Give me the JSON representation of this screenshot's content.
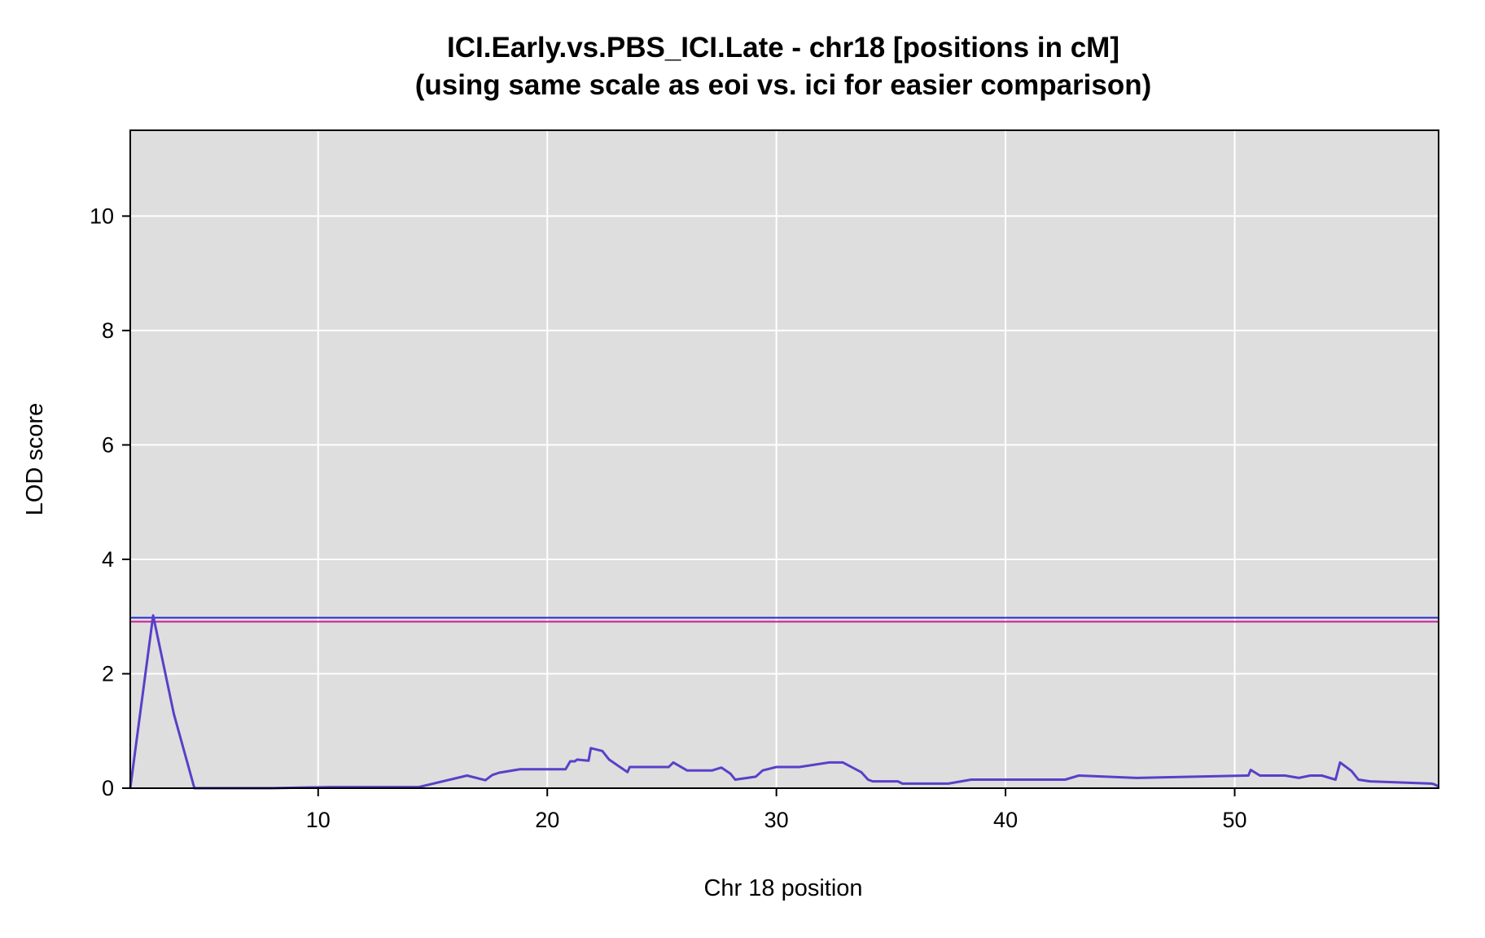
{
  "chart_data": {
    "type": "line",
    "title": "ICI.Early.vs.PBS_ICI.Late - chr18 [positions in cM]",
    "subtitle": "(using same scale as eoi vs. ici for easier comparison)",
    "xlabel": "Chr 18 position",
    "ylabel": "LOD score",
    "xlim": [
      1.8,
      58.9
    ],
    "ylim": [
      0,
      11.5
    ],
    "x_ticks": [
      10,
      20,
      30,
      40,
      50
    ],
    "y_ticks": [
      0,
      2,
      4,
      6,
      8,
      10
    ],
    "grid": true,
    "colors": {
      "panel_bg": "#dedede",
      "grid": "#ffffff",
      "lod_line": "#5a3fc8",
      "threshold_blue": "#2a2ad8",
      "threshold_magenta": "#c81e96"
    },
    "thresholds": [
      {
        "value": 2.98,
        "color": "#2a2ad8"
      },
      {
        "value": 2.91,
        "color": "#c81e96"
      }
    ],
    "series": [
      {
        "x": [
          1.8,
          2.8,
          3.7,
          4.6,
          8.0,
          10.5,
          14.4,
          16.5,
          17.3,
          17.6,
          17.9,
          18.8,
          20.8,
          21.0,
          21.2,
          21.3,
          21.8,
          21.9,
          22.4,
          22.7,
          23.5,
          23.6,
          25.3,
          25.5,
          26.1,
          27.2,
          27.6,
          28.0,
          28.2,
          29.1,
          29.4,
          30.0,
          31.0,
          32.3,
          32.9,
          33.7,
          34.0,
          34.2,
          35.3,
          35.5,
          37.5,
          38.5,
          38.6,
          42.6,
          43.2,
          45.7,
          50.5,
          50.6,
          50.7,
          51.1,
          51.3,
          52.2,
          52.8,
          53.3,
          53.8,
          54.4,
          54.6,
          55.1,
          55.4,
          55.9,
          58.6,
          58.7,
          58.9
        ],
        "y": [
          0.0,
          3.02,
          1.3,
          0.0,
          0.0,
          0.02,
          0.02,
          0.22,
          0.14,
          0.23,
          0.27,
          0.33,
          0.33,
          0.47,
          0.47,
          0.5,
          0.48,
          0.7,
          0.65,
          0.5,
          0.28,
          0.37,
          0.37,
          0.45,
          0.31,
          0.31,
          0.36,
          0.25,
          0.15,
          0.2,
          0.31,
          0.37,
          0.37,
          0.45,
          0.45,
          0.28,
          0.15,
          0.12,
          0.12,
          0.08,
          0.08,
          0.15,
          0.15,
          0.15,
          0.22,
          0.18,
          0.22,
          0.22,
          0.32,
          0.22,
          0.22,
          0.22,
          0.18,
          0.22,
          0.22,
          0.15,
          0.45,
          0.3,
          0.15,
          0.12,
          0.08,
          0.07,
          0.03
        ]
      }
    ]
  }
}
